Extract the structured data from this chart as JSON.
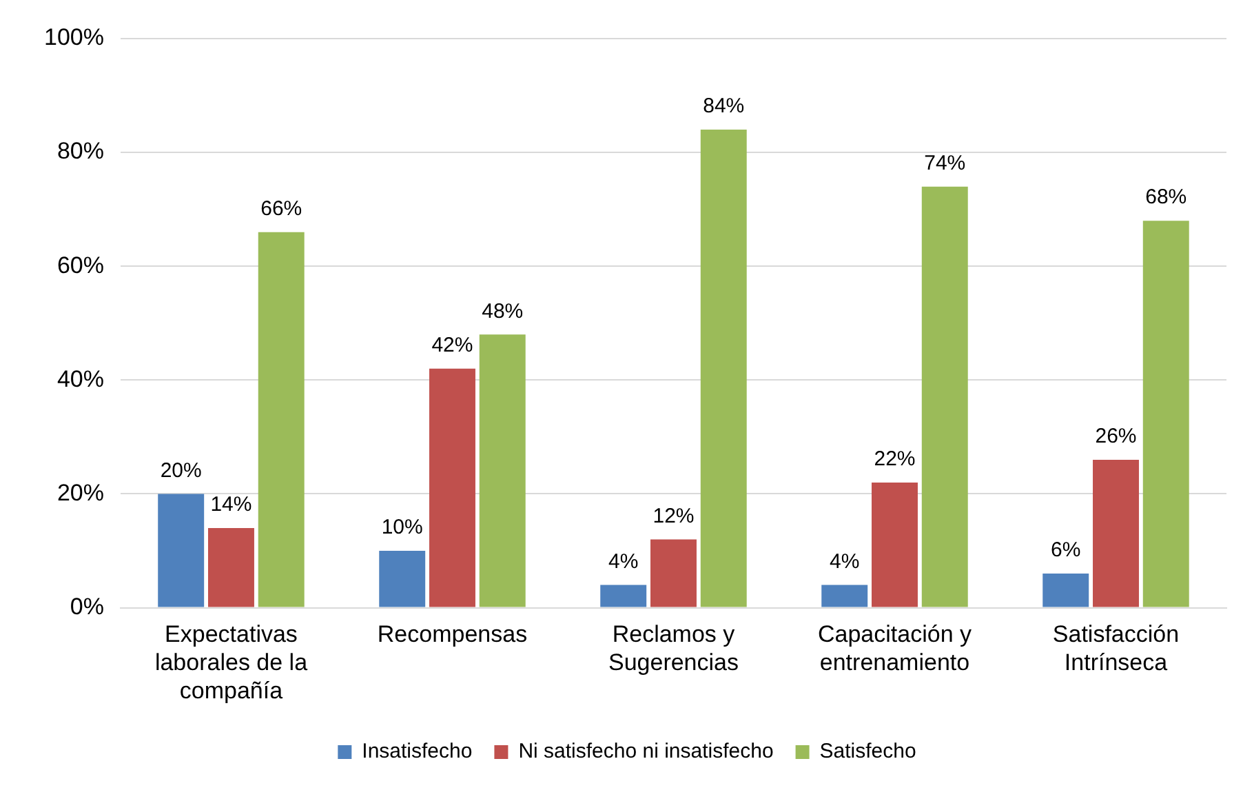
{
  "chart_data": {
    "type": "bar",
    "categories": [
      "Expectativas laborales de la compañía",
      "Recompensas",
      "Reclamos y Sugerencias",
      "Capacitación y entrenamiento",
      "Satisfacción Intrínseca"
    ],
    "series": [
      {
        "name": "Insatisfecho",
        "color": "#4f81bd",
        "values": [
          20,
          10,
          4,
          4,
          6
        ],
        "value_labels": [
          "20%",
          "10%",
          "4%",
          "4%",
          "6%"
        ]
      },
      {
        "name": "Ni satisfecho ni insatisfecho",
        "color": "#c0504d",
        "values": [
          14,
          42,
          12,
          22,
          26
        ],
        "value_labels": [
          "14%",
          "42%",
          "12%",
          "22%",
          "26%"
        ]
      },
      {
        "name": "Satisfecho",
        "color": "#9bbb59",
        "values": [
          66,
          48,
          84,
          74,
          68
        ],
        "value_labels": [
          "66%",
          "48%",
          "84%",
          "74%",
          "68%"
        ]
      }
    ],
    "ylim": [
      0,
      100
    ],
    "yticks": [
      {
        "value": 0,
        "label": "0%"
      },
      {
        "value": 20,
        "label": "20%"
      },
      {
        "value": 40,
        "label": "40%"
      },
      {
        "value": 60,
        "label": "60%"
      },
      {
        "value": 80,
        "label": "80%"
      },
      {
        "value": 100,
        "label": "100%"
      }
    ],
    "grid": "y",
    "legend": "bottom"
  }
}
